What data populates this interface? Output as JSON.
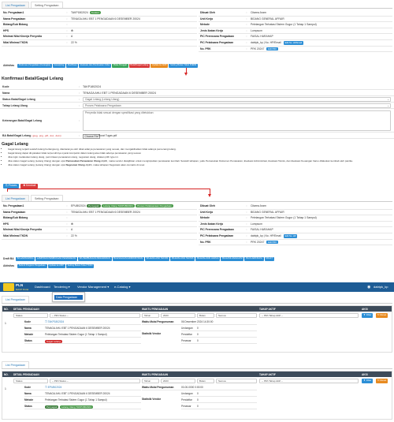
{
  "section1": {
    "tabs": [
      "List Pengadaan",
      "Setting Pengadaan"
    ],
    "left_fields": [
      {
        "label": "No. Pengadaan1",
        "value": "TAKP1802024",
        "badge": "Tenderi"
      },
      {
        "label": "Nama Pengadaan",
        "value": "TENAGA AHLI EBT 1 PENGADAAN 6 DESEMBER 20024"
      },
      {
        "label": "Bidang/Sub Bidang",
        "value": ""
      },
      {
        "label": "HPS",
        "value": "❇"
      },
      {
        "label": "Minimal Nilai Kinerja Penyedia",
        "value": "A"
      },
      {
        "label": "Nilai Minimal TKDN",
        "value": "22 %"
      }
    ],
    "right_fields": [
      {
        "label": "Dibuat Oleh",
        "value": "Citarea Aram"
      },
      {
        "label": "Unit Kerja",
        "value": "BIDANG GENERAL AFFAIR"
      },
      {
        "label": "Metode",
        "value": "Pelelangan Terbatasi Sistem Gugur (1 Tahap 1 Sampul)"
      },
      {
        "label": "Jenis Ikatan Kerja",
        "value": "Lumpsum"
      },
      {
        "label": "PIC Perencana Pengadaan",
        "value": "FAISAL HARAHAP"
      },
      {
        "label": "PIC Pelaksana Pengadaan",
        "value": "dabtpk_kp | No. HP/Email",
        "btn": "Edit No. HP/Email"
      },
      {
        "label": "No. PRK",
        "value": "PRK 20247",
        "btn": "Edit PRK"
      }
    ],
    "aktivitas_label": "Aktivitas",
    "aktivitas_buttons": [
      {
        "label": "Pedoman Pengadaan (Kerangka)",
        "color": "blue"
      },
      {
        "label": "Aanwijzing",
        "color": "blue"
      },
      {
        "label": "Klarifikasi",
        "color": "blue"
      },
      {
        "label": "Evaluasi dan Pembuatan Order",
        "color": "blue"
      },
      {
        "label": "Buka Penggal",
        "color": "green"
      },
      {
        "label": "Batal/Gagal Lelang",
        "color": "red"
      },
      {
        "label": "Update ke AMP",
        "color": "orange"
      },
      {
        "label": "Setting Bukan Tabel PHEMI",
        "color": "blue"
      }
    ]
  },
  "konfirmasi": {
    "title": "Konfirmasi Batal/Gagal Lelang",
    "rows": [
      {
        "label": "Kode",
        "value": "TAKP1802024"
      },
      {
        "label": "Nama",
        "value": "TENAGA AHLI EBT 1 PENGADAAN 6 DESEMBER 20024"
      },
      {
        "label": "Status Batal/Gagal Lelang",
        "value": "Gagal Lelang (Lelang Ulang)"
      },
      {
        "label": "Tahap Lelang Ulang",
        "value": "Proses Pelaksana Pengadaan"
      },
      {
        "label": "Keterangan Batal/Gagal Lelang",
        "value": "Penyedia tidak sesuai dengan spesifikasi yang ditetukkan"
      },
      {
        "label": "BA Batal/Gagal Lelang",
        "hint": "(.jpeg, .png, .pdf, .doc, .docx)",
        "file_button": "Choose File",
        "file_name": "Surat Tugas.pdf"
      }
    ]
  },
  "gagal": {
    "title": "Gagal Lelang",
    "bullets": [
      "Gagal lelang terjadi setelah lelang berlangsung, diantaranya oleh tidak adanya penawaran yang sesuai, dan mengakibatkan tidak adanya pemenang lelang.",
      "Gagal lelang dapat dinyatakan tidak terpenuhinya syarat kompetisi dalam lelang atau tidak adanya penawaran yang sesuai.",
      "Jika ingin melakukan lelang ulang, permintaan penawaran ulang, negosiasi ulang, silakan pilih type ini.",
      "Jika status Gagal Lelang (Lelang Ulang) dengan opsi Pemasukan Penawaran Ulang dipilih, maka vendor diwajibkan untuk menginputkan penawaran kembali. Setelah tahapan, yaitu Pemasukan Dokumen Penawaran, Evaluasi Administrasi, Evaluasi Teknis, dan Evaluasi Keuangan harus dilakukan kembali oleh panitia.",
      "Jika status Gagal Lelang (Lelang Ulang) dengan opsi Negosiasi Ulang dipilih, maka tahapan Negosiasi akan otomatis di reset"
    ],
    "bold_1": "Pemasukan Penawaran Ulang",
    "bold_2": "Negosiasi Ulang",
    "proses_button": "Proses",
    "kembali_button": "Kembali"
  },
  "section2": {
    "tabs": [
      "List Pengadaan",
      "Setting Pengadaan"
    ],
    "left_fields": [
      {
        "label": "No. Pengadaan1",
        "value": "EPUB02024",
        "badges": [
          "Penyegak",
          "Lelang Ulang TAKP1802024",
          "Proses Pelaksanaan Pengadaan"
        ]
      },
      {
        "label": "Nama Pengadaan",
        "value": "TENAGA AHLI EBT 1 PENGADAAN 6 DESEMBER 20024"
      },
      {
        "label": "Bidang/Sub Bidang",
        "value": ""
      },
      {
        "label": "HPS",
        "value": "❇"
      },
      {
        "label": "Minimal Nilai Kinerja Penyedia",
        "value": "A"
      },
      {
        "label": "Nilai Minimal TKDN",
        "value": "22 %"
      }
    ],
    "right_fields": [
      {
        "label": "Dibuat Oleh",
        "value": "Citarea Aram"
      },
      {
        "label": "Unit Kerja",
        "value": "BIDANG GENERAL AFFAIR"
      },
      {
        "label": "Metode",
        "value": "Pelelangan Terbatasi Sistem Gugur (1 Tahap 1 Sampul)"
      },
      {
        "label": "Jenis Ikatan Kerja",
        "value": "Lumpsum"
      },
      {
        "label": "PIC Perencana Pengadaan",
        "value": "FAISAL HARAHAP"
      },
      {
        "label": "PIC Pelaksana Pengadaan",
        "value": "dabtpk_kp | No. HP/Email",
        "btn": "Edit No. HP"
      },
      {
        "label": "No. PRK",
        "value": "PRK 20247",
        "btn": "Edit PRK"
      }
    ],
    "draft_label": "Draft BA",
    "draft_buttons": [
      "BA AANWIJZING",
      "LAMPIRAN PEMBUKAAN PENAWARAN",
      "BA PEMBUKAAN PENAWARAN",
      "BA EVALUASI ADMINISTRASI",
      "BA EVALUASI TEKNIS",
      "BA EVALUASI TEKNIS",
      "BA EVALUASI HARGA",
      "BA HASIL EVALUASI",
      "BA KLARIFIKASI",
      "DRAFT"
    ],
    "aktivitas_label": "Aktivitas",
    "aktivitas_buttons": [
      "Submit Program Pengadaan",
      "Update ke AMP",
      "Setting Bukan Tabel TKDN"
    ]
  },
  "nav": {
    "logo_main": "PLN",
    "logo_sub": "MACP Portal",
    "items": [
      "Dashboard",
      "Tendering ▾",
      "Vendor Management ▾",
      "e-Catalog ▾"
    ],
    "user": "dabtpk_kp",
    "dropdown_item": "Data Pengadaan"
  },
  "table1": {
    "tab": "List Pengadaan",
    "headers": [
      "NO.",
      "DETAIL PENGADAAN",
      "WAKTU PENGADAAN",
      "TAHAP AKTIF",
      "AKSI"
    ],
    "filter_status": "Status",
    "filter_pilih_status": "-- Pilih Status --",
    "filter_tahun": "Tahun",
    "filter_tahun_val": "2023",
    "filter_bulan": "Bulan",
    "filter_bulan_val": "Semua",
    "filter_tahap": "-- Pilih Tahap Aktif --",
    "filter_button": "Filter",
    "reset_button": "Reset",
    "row": {
      "no": "1",
      "kode": "TAKP1802024",
      "nama": "TENAGA AHLI EBT 1 PENGADAAN 6 DESEMBER 20024",
      "metode": "Pelelangan Terbatasi Sistem Gugur (1 Tahap 1 Sampul)",
      "status_badge": "Gagal Lelang",
      "waktu_label": "Waktu Mulai Pengumuman",
      "waktu_value": "06 Desember 2024 14:30:00",
      "statistik_label": "Statistik Vendor",
      "undangan": "0",
      "pendaftar": "0",
      "penawar": "0"
    }
  },
  "table2": {
    "tab": "List Pengadaan",
    "headers": [
      "NO.",
      "DETAIL PENGADAAN",
      "WAKTU PENGADAAN",
      "TAHAP AKTIF",
      "AKSI"
    ],
    "filter_status": "Status",
    "filter_pilih_status": "-- Pilih Status --",
    "filter_tahun": "Tahun",
    "filter_tahun_val": "2023",
    "filter_bulan": "Bulan",
    "filter_bulan_val": "Semua",
    "filter_tahap": "-- Pilih Tahap Aktif --",
    "filter_button": "Filter",
    "reset_button": "Reset",
    "row": {
      "no": "1",
      "kode": "EPUB02024",
      "nama": "TENAGA AHLI EBT 1 PENGADAAN 6 DESEMBER 20024",
      "metode": "Pelelangan Terbatasi Sistem Gugur (1 Tahap 1 Sampul)",
      "status_badges": [
        "Penyegak",
        "Lelang Ulang TAKP1802024"
      ],
      "waktu_label": "Waktu Mulai Pengumuman",
      "waktu_value": "00-00-0000 0:00:00",
      "statistik_label": "Statistik Vendor",
      "undangan": "0",
      "pendaftar": "0",
      "penawar": "0"
    }
  },
  "labels": {
    "undangan": "Undangan",
    "pendaftar": "Pendaftar",
    "penawar": "Penawar",
    "kode": "Kode",
    "nama": "Nama",
    "metode": "Metode",
    "status": "Status"
  }
}
